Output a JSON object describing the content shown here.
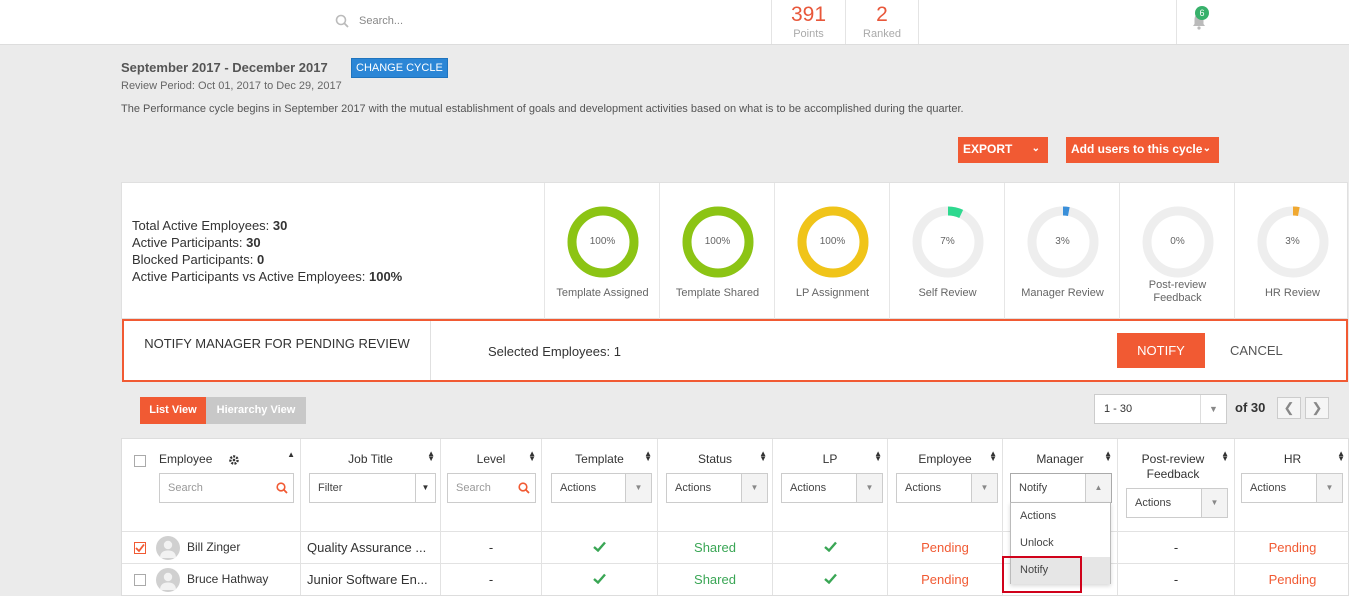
{
  "topbar": {
    "search_placeholder": "Search...",
    "points_value": "391",
    "points_label": "Points",
    "ranked_value": "2",
    "ranked_label": "Ranked",
    "notifications_count": "6"
  },
  "cycle": {
    "title": "September 2017 - December 2017",
    "change_label": "CHANGE CYCLE",
    "review_period": "Review Period: Oct 01, 2017 to Dec 29, 2017",
    "description": "The Performance cycle begins in September 2017 with the mutual establishment of goals and development activities based on what is to be accomplished during the quarter."
  },
  "actions": {
    "export_label": "EXPORT",
    "add_users_label": "Add users to this cycle"
  },
  "summary": {
    "total_active_label": "Total Active Employees: ",
    "total_active_value": "30",
    "active_participants_label": "Active Participants: ",
    "active_participants_value": "30",
    "blocked_label": "Blocked Participants: ",
    "blocked_value": "0",
    "ratio_label": "Active Participants vs Active Employees: ",
    "ratio_value": "100%",
    "rings": [
      {
        "label": "Template Assigned",
        "pct_text": "100%",
        "value": 100,
        "color": "#8cc414"
      },
      {
        "label": "Template Shared",
        "pct_text": "100%",
        "value": 100,
        "color": "#8cc414"
      },
      {
        "label": "LP Assignment",
        "pct_text": "100%",
        "value": 100,
        "color": "#f0c419"
      },
      {
        "label": "Self Review",
        "pct_text": "7%",
        "value": 7,
        "color": "#2ed98f"
      },
      {
        "label": "Manager Review",
        "pct_text": "3%",
        "value": 3,
        "color": "#3a8fd9"
      },
      {
        "label": "Post-review Feedback",
        "pct_text": "0%",
        "value": 0,
        "color": "#cccccc"
      },
      {
        "label": "HR Review",
        "pct_text": "3%",
        "value": 3,
        "color": "#f0a830"
      }
    ]
  },
  "notify_bar": {
    "title": "NOTIFY MANAGER FOR PENDING REVIEW",
    "selected": "Selected Employees: 1",
    "notify_label": "NOTIFY",
    "cancel_label": "CANCEL"
  },
  "views": {
    "list_label": "List View",
    "hierarchy_label": "Hierarchy View"
  },
  "pagination": {
    "range": "1 - 30",
    "of_total": "of 30"
  },
  "table": {
    "headers": {
      "employee": "Employee",
      "job_title": "Job Title",
      "level": "Level",
      "template": "Template",
      "status": "Status",
      "lp": "LP",
      "employee_review": "Employee",
      "manager": "Manager",
      "post_review": "Post-review Feedback",
      "hr": "HR"
    },
    "filters": {
      "employee_search": "Search",
      "job_filter": "Filter",
      "level_search": "Search",
      "actions": "Actions",
      "manager_selected": "Notify"
    },
    "rows": [
      {
        "name": "Bill Zinger",
        "job": "Quality Assurance ...",
        "level": "-",
        "status": "Shared",
        "employee": "Pending",
        "post": "-",
        "hr": "Pending",
        "checked": true
      },
      {
        "name": "Bruce Hathway",
        "job": "Junior Software En...",
        "level": "-",
        "status": "Shared",
        "employee": "Pending",
        "post": "-",
        "hr": "Pending",
        "checked": false
      }
    ]
  },
  "manager_dropdown": {
    "options": [
      "Actions",
      "Unlock",
      "Notify"
    ]
  }
}
